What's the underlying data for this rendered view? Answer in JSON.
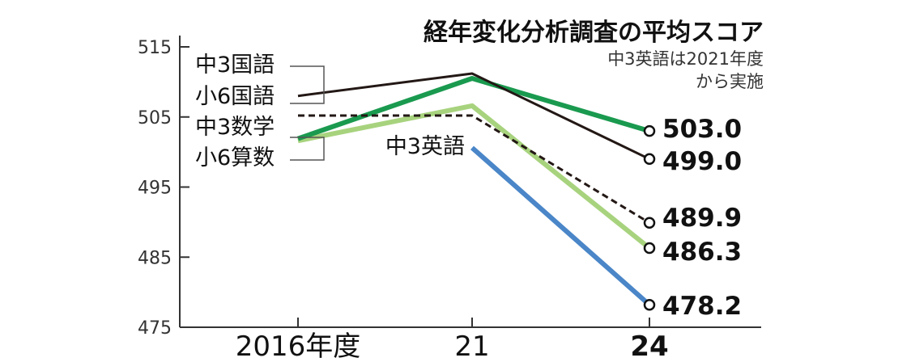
{
  "chart_data": {
    "type": "line",
    "title": "経年変化分析調査の平均スコア",
    "subtitle_lines": [
      "中3英語は2021年度",
      "から実施"
    ],
    "categories": [
      "2016年度",
      "21",
      "24"
    ],
    "y_ticks": [
      "515",
      "505",
      "495",
      "485",
      "475"
    ],
    "ylim": [
      475,
      515
    ],
    "grid": false,
    "series": [
      {
        "name": "中3国語",
        "values": [
          508.0,
          511.2,
          499.0
        ],
        "end_label": "499.0",
        "color": "#231815",
        "style": "solid"
      },
      {
        "name": "小6国語",
        "values": [
          501.9,
          510.5,
          503.0
        ],
        "end_label": "503.0",
        "color": "#1a9a4f",
        "style": "solid"
      },
      {
        "name": "中3数学",
        "values": [
          505.2,
          505.2,
          489.9
        ],
        "end_label": "489.9",
        "color": "#231815",
        "style": "dashed"
      },
      {
        "name": "小6算数",
        "values": [
          501.6,
          506.6,
          486.3
        ],
        "end_label": "486.3",
        "color": "#a8d37e",
        "style": "solid"
      },
      {
        "name": "中3英語",
        "values": [
          null,
          500.6,
          478.2
        ],
        "end_label": "478.2",
        "color": "#4a86c8",
        "style": "solid"
      }
    ]
  }
}
